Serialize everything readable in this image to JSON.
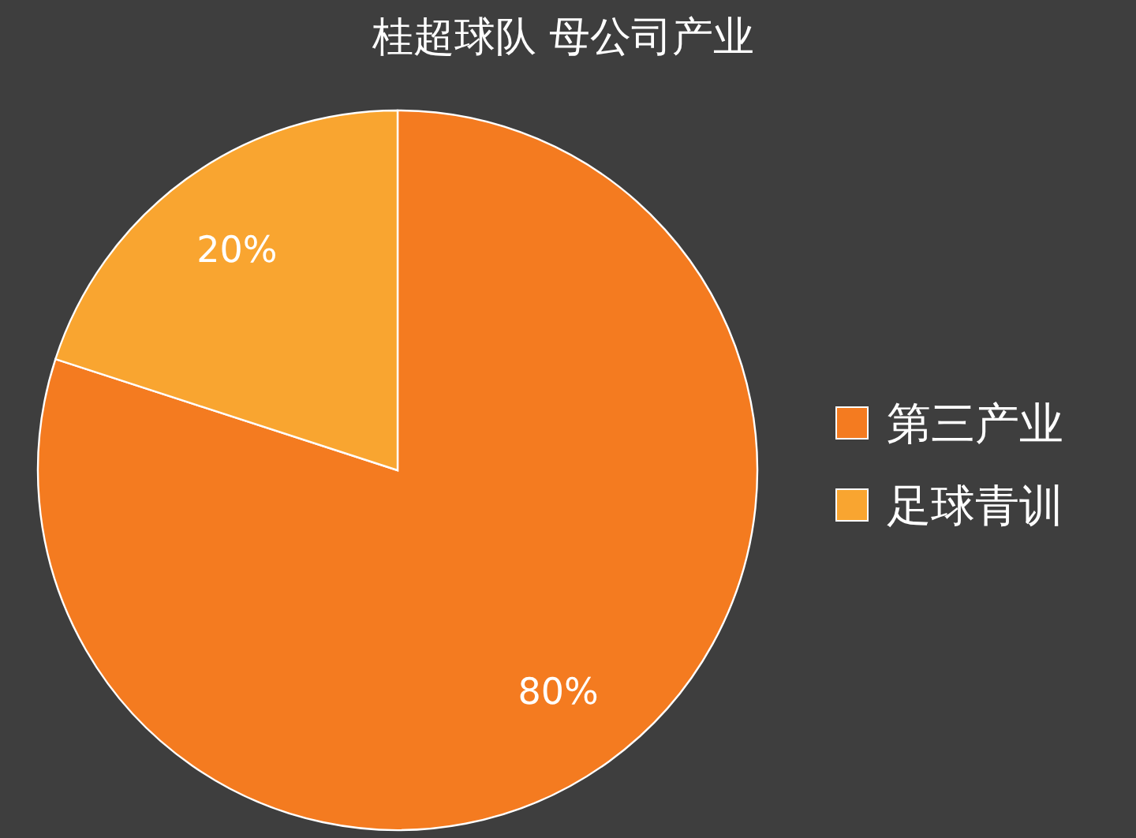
{
  "chart_data": {
    "type": "pie",
    "title": "桂超球队 母公司产业",
    "categories": [
      "第三产业",
      "足球青训"
    ],
    "values": [
      80,
      20
    ],
    "value_labels": [
      "80%",
      "20%"
    ],
    "colors": [
      "#f47b20",
      "#f9a530"
    ],
    "legend": "right"
  }
}
